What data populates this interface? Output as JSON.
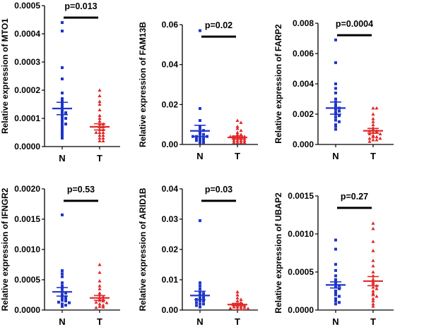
{
  "colors": {
    "N": "#1f35c8",
    "T": "#e02a2a",
    "axis": "#000000"
  },
  "chart_data": [
    {
      "type": "scatter",
      "title": "",
      "ylabel": "Relative expression of MTO1",
      "categories": [
        "N",
        "T"
      ],
      "ylim": [
        0,
        0.0005
      ],
      "yticks": [
        "0.0000",
        "0.0001",
        "0.0002",
        "0.0003",
        "0.0004",
        "0.0005"
      ],
      "pvalue": "p=0.013",
      "series": [
        {
          "category": "N",
          "mean": 0.000135,
          "sem": 2.2e-05,
          "values": [
            0.00044,
            0.00041,
            0.00028,
            0.00024,
            0.00019,
            0.00017,
            0.00016,
            0.00015,
            0.00014,
            0.00013,
            0.00012,
            0.00012,
            0.00011,
            0.0001,
            0.0001,
            9e-05,
            8e-05,
            8e-05,
            7e-05,
            6e-05,
            5e-05,
            4e-05,
            3e-05
          ]
        },
        {
          "category": "T",
          "mean": 7e-05,
          "sem": 1.1e-05,
          "values": [
            0.0002,
            0.00018,
            0.00016,
            0.00015,
            0.00013,
            0.00011,
            0.0001,
            9e-05,
            8e-05,
            8e-05,
            7e-05,
            7e-05,
            6e-05,
            6e-05,
            5e-05,
            5e-05,
            5e-05,
            4e-05,
            4e-05,
            3e-05,
            3e-05,
            2e-05,
            2e-05
          ]
        }
      ]
    },
    {
      "type": "scatter",
      "title": "",
      "ylabel": "Relative expression of FAM13B",
      "categories": [
        "N",
        "T"
      ],
      "ylim": [
        0,
        0.06
      ],
      "yticks": [
        "0.00",
        "0.02",
        "0.04",
        "0.06"
      ],
      "pvalue": "p=0.02",
      "series": [
        {
          "category": "N",
          "mean": 0.0068,
          "sem": 0.0028,
          "values": [
            0.057,
            0.018,
            0.012,
            0.009,
            0.008,
            0.007,
            0.006,
            0.005,
            0.005,
            0.004,
            0.004,
            0.004,
            0.003,
            0.003,
            0.003,
            0.002,
            0.002,
            0.002,
            0.001,
            0.001
          ]
        },
        {
          "category": "T",
          "mean": 0.0035,
          "sem": 0.0007,
          "values": [
            0.012,
            0.011,
            0.009,
            0.008,
            0.007,
            0.006,
            0.005,
            0.005,
            0.004,
            0.004,
            0.004,
            0.003,
            0.003,
            0.003,
            0.003,
            0.002,
            0.002,
            0.002,
            0.002,
            0.001,
            0.001,
            0.001,
            0.001
          ]
        }
      ]
    },
    {
      "type": "scatter",
      "title": "",
      "ylabel": "Relative expression of FARP2",
      "categories": [
        "N",
        "T"
      ],
      "ylim": [
        0,
        0.008
      ],
      "yticks": [
        "0.000",
        "0.002",
        "0.004",
        "0.006",
        "0.008"
      ],
      "pvalue": "p=0.0004",
      "series": [
        {
          "category": "N",
          "mean": 0.0024,
          "sem": 0.0004,
          "values": [
            0.0069,
            0.0054,
            0.004,
            0.0037,
            0.0034,
            0.003,
            0.0028,
            0.0026,
            0.0025,
            0.0024,
            0.0023,
            0.0022,
            0.0021,
            0.002,
            0.0019,
            0.0018,
            0.0016,
            0.0015,
            0.0013,
            0.0012,
            0.001
          ]
        },
        {
          "category": "T",
          "mean": 0.0009,
          "sem": 0.00016,
          "values": [
            0.0024,
            0.0024,
            0.002,
            0.0017,
            0.0015,
            0.0013,
            0.0011,
            0.001,
            0.0009,
            0.0009,
            0.0008,
            0.0008,
            0.0007,
            0.0007,
            0.0006,
            0.0005,
            0.0005,
            0.0004,
            0.0004,
            0.0003,
            0.0003,
            0.0002
          ]
        }
      ]
    },
    {
      "type": "scatter",
      "title": "",
      "ylabel": "Relative expression of IFNGR2",
      "categories": [
        "N",
        "T"
      ],
      "ylim": [
        0,
        0.002
      ],
      "yticks": [
        "0.0000",
        "0.0005",
        "0.0010",
        "0.0015",
        "0.0020"
      ],
      "pvalue": "p=0.53",
      "series": [
        {
          "category": "N",
          "mean": 0.0003,
          "sem": 7e-05,
          "values": [
            0.00157,
            0.00065,
            0.0006,
            0.00055,
            0.00045,
            0.0004,
            0.00035,
            0.0003,
            0.00028,
            0.00025,
            0.00022,
            0.0002,
            0.00018,
            0.00016,
            0.00015,
            0.00013,
            0.00012,
            0.0001,
            8e-05,
            6e-05
          ]
        },
        {
          "category": "T",
          "mean": 0.0002,
          "sem": 4e-05,
          "values": [
            0.00075,
            0.00062,
            0.00048,
            0.0004,
            0.00035,
            0.00028,
            0.00025,
            0.00022,
            0.0002,
            0.00018,
            0.00016,
            0.00015,
            0.00013,
            0.00012,
            0.0001,
            8e-05,
            6e-05,
            5e-05,
            4e-05
          ]
        }
      ]
    },
    {
      "type": "scatter",
      "title": "",
      "ylabel": "Relative expression of ARID1B",
      "categories": [
        "N",
        "T"
      ],
      "ylim": [
        0,
        0.04
      ],
      "yticks": [
        "0.00",
        "0.01",
        "0.02",
        "0.03",
        "0.04"
      ],
      "pvalue": "p=0.03",
      "series": [
        {
          "category": "N",
          "mean": 0.0048,
          "sem": 0.0014,
          "values": [
            0.0295,
            0.009,
            0.008,
            0.007,
            0.006,
            0.0055,
            0.005,
            0.0045,
            0.004,
            0.004,
            0.0035,
            0.003,
            0.003,
            0.0025,
            0.002,
            0.002,
            0.0015,
            0.001
          ]
        },
        {
          "category": "T",
          "mean": 0.0018,
          "sem": 0.0004,
          "values": [
            0.006,
            0.005,
            0.004,
            0.0035,
            0.003,
            0.0025,
            0.002,
            0.002,
            0.0018,
            0.0015,
            0.0012,
            0.001,
            0.001,
            0.0008,
            0.0006,
            0.0005,
            0.0004,
            0.0003
          ]
        }
      ]
    },
    {
      "type": "scatter",
      "title": "",
      "ylabel": "Relative expression of UBAP2",
      "categories": [
        "N",
        "T"
      ],
      "ylim": [
        0,
        0.0015
      ],
      "yticks": [
        "0.0000",
        "0.0005",
        "0.0010",
        "0.0015"
      ],
      "pvalue": "p=0.27",
      "series": [
        {
          "category": "N",
          "mean": 0.00033,
          "sem": 4e-05,
          "values": [
            0.00092,
            0.0008,
            0.0006,
            0.00052,
            0.00045,
            0.0004,
            0.00037,
            0.00035,
            0.00032,
            0.0003,
            0.00028,
            0.00025,
            0.00022,
            0.0002,
            0.00018,
            0.00015,
            0.00012,
            0.0001,
            8e-05
          ]
        },
        {
          "category": "T",
          "mean": 0.00038,
          "sem": 6e-05,
          "values": [
            0.00114,
            0.00107,
            0.0009,
            0.00078,
            0.00065,
            0.00058,
            0.0005,
            0.00045,
            0.0004,
            0.00037,
            0.00035,
            0.00032,
            0.0003,
            0.00028,
            0.00025,
            0.00022,
            0.0002,
            0.00018,
            0.00015,
            0.00012,
            8e-05,
            5e-05
          ]
        }
      ]
    }
  ]
}
